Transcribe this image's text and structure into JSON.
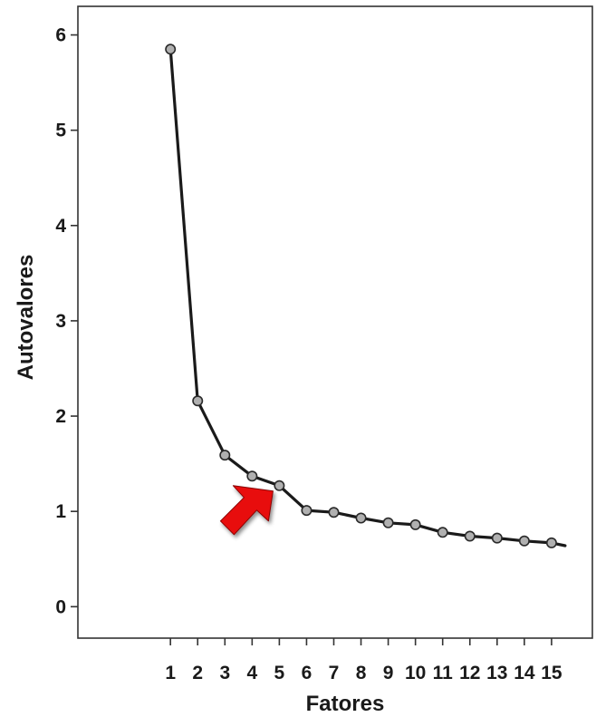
{
  "chart_data": {
    "type": "line",
    "xlabel": "Fatores",
    "ylabel": "Autovalores",
    "x": [
      1,
      2,
      3,
      4,
      5,
      6,
      7,
      8,
      9,
      10,
      11,
      12,
      13,
      14,
      15
    ],
    "x_tick_labels": [
      "1",
      "2",
      "3",
      "4",
      "5",
      "6",
      "7",
      "8",
      "9",
      "10",
      "11",
      "12",
      "13",
      "14",
      "15"
    ],
    "y_tick_labels": [
      "0",
      "1",
      "2",
      "3",
      "4",
      "5",
      "6"
    ],
    "y_ticks": [
      0,
      1,
      2,
      3,
      4,
      5,
      6
    ],
    "series": [
      {
        "values": [
          5.85,
          2.16,
          1.59,
          1.37,
          1.27,
          1.01,
          0.99,
          0.93,
          0.88,
          0.86,
          0.78,
          0.74,
          0.72,
          0.69,
          0.67
        ]
      }
    ],
    "line_extends_to_x": 15.5,
    "line_end_value": 0.64,
    "xlim": [
      -2.4,
      16.5
    ],
    "ylim": [
      -0.33,
      6.3
    ],
    "grid": false,
    "annotation": {
      "type": "arrow",
      "points_to_x": 5,
      "color": "#e8100c"
    },
    "colors": {
      "line": "#1a1a1a",
      "marker_fill": "#b0b0b0",
      "marker_stroke": "#2a2a2a",
      "axis": "#333333"
    }
  }
}
